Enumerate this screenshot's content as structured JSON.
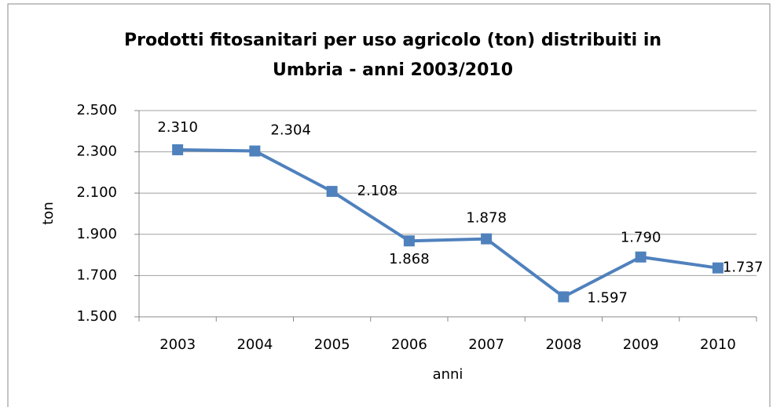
{
  "chart_data": {
    "type": "line",
    "title": [
      "Prodotti fitosanitari per uso agricolo (ton) distribuiti in",
      "Umbria - anni 2003/2010"
    ],
    "x_label": "anni",
    "y_label": "ton",
    "categories": [
      "2003",
      "2004",
      "2005",
      "2006",
      "2007",
      "2008",
      "2009",
      "2010"
    ],
    "values": [
      2310,
      2304,
      2108,
      1868,
      1878,
      1597,
      1790,
      1737
    ],
    "value_labels": [
      "2.310",
      "2.304",
      "2.108",
      "1.868",
      "1.878",
      "1.597",
      "1.790",
      "1.737"
    ],
    "color": "#4f81bd",
    "ylim": [
      1500,
      2500
    ],
    "yticks": [
      {
        "value": 1500,
        "label": "1.500"
      },
      {
        "value": 1700,
        "label": "1.700"
      },
      {
        "value": 1900,
        "label": "1.900"
      },
      {
        "value": 2100,
        "label": "2.100"
      },
      {
        "value": 2300,
        "label": "2.300"
      },
      {
        "value": 2500,
        "label": "2.500"
      }
    ],
    "grid": true
  }
}
